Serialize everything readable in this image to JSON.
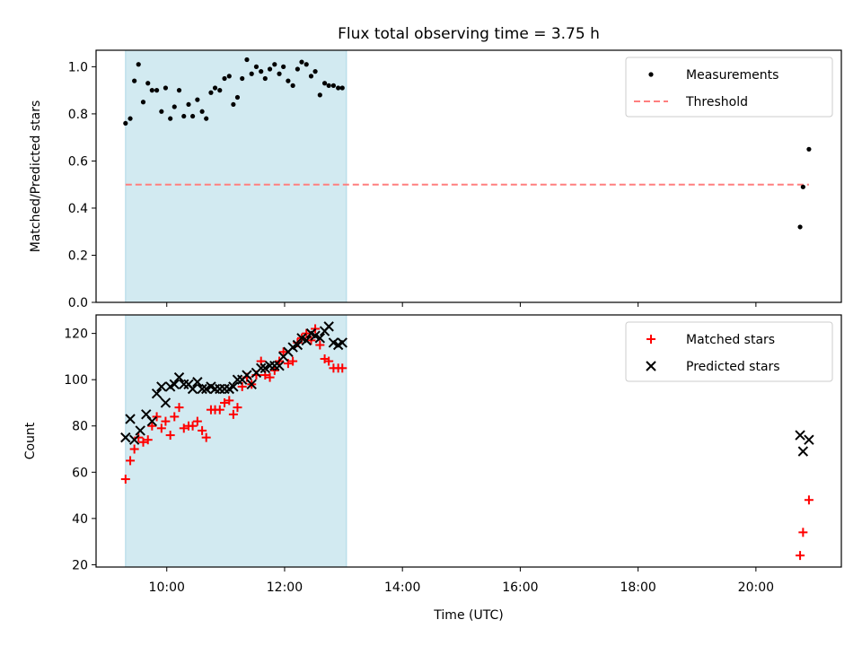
{
  "title": "Flux total observing time = 3.75 h",
  "xlabel": "Time (UTC)",
  "colors": {
    "measurement": "#000000",
    "threshold": "#ff7f7f",
    "matched": "#ff0000",
    "predicted": "#000000",
    "band": "#add8e6"
  },
  "chart_data": [
    {
      "type": "scatter",
      "panel": "top",
      "title": "Flux total observing time = 3.75 h",
      "ylabel": "Matched/Predicted stars",
      "xlim": [
        8.8,
        21.45
      ],
      "ylim": [
        0.0,
        1.07
      ],
      "yticks": [
        0.0,
        0.2,
        0.4,
        0.6,
        0.8,
        1.0
      ],
      "ytick_labels": [
        "0.0",
        "0.2",
        "0.4",
        "0.6",
        "0.8",
        "1.0"
      ],
      "shaded_interval": [
        9.3,
        13.05
      ],
      "legend": {
        "position": "top-right",
        "entries": [
          "Measurements",
          "Threshold"
        ]
      },
      "threshold": {
        "name": "Threshold",
        "y": 0.5,
        "x_range": [
          9.3,
          20.9
        ]
      },
      "series": [
        {
          "name": "Measurements",
          "x": [
            9.3,
            9.38,
            9.45,
            9.52,
            9.6,
            9.68,
            9.75,
            9.83,
            9.91,
            9.98,
            10.06,
            10.13,
            10.21,
            10.29,
            10.37,
            10.44,
            10.52,
            10.6,
            10.67,
            10.75,
            10.82,
            10.9,
            10.98,
            11.06,
            11.13,
            11.2,
            11.28,
            11.36,
            11.44,
            11.52,
            11.6,
            11.67,
            11.75,
            11.83,
            11.91,
            11.98,
            12.06,
            12.14,
            12.22,
            12.29,
            12.37,
            12.45,
            12.52,
            12.6,
            12.68,
            12.75,
            12.83,
            12.91,
            12.98,
            20.75,
            20.8,
            20.9
          ],
          "y": [
            0.76,
            0.78,
            0.94,
            1.01,
            0.85,
            0.93,
            0.9,
            0.9,
            0.81,
            0.91,
            0.78,
            0.83,
            0.9,
            0.79,
            0.84,
            0.79,
            0.86,
            0.81,
            0.78,
            0.89,
            0.91,
            0.9,
            0.95,
            0.96,
            0.84,
            0.87,
            0.95,
            1.03,
            0.97,
            1.0,
            0.98,
            0.95,
            0.99,
            1.01,
            0.97,
            1.0,
            0.94,
            0.92,
            0.99,
            1.02,
            1.01,
            0.96,
            0.98,
            0.88,
            0.93,
            0.92,
            0.92,
            0.91,
            0.91,
            0.32,
            0.49,
            0.65
          ]
        }
      ]
    },
    {
      "type": "scatter",
      "panel": "bottom",
      "xlabel": "Time (UTC)",
      "ylabel": "Count",
      "xlim": [
        8.8,
        21.45
      ],
      "ylim": [
        19,
        128
      ],
      "xticks": [
        10,
        12,
        14,
        16,
        18,
        20
      ],
      "xtick_labels": [
        "10:00",
        "12:00",
        "14:00",
        "16:00",
        "18:00",
        "20:00"
      ],
      "yticks": [
        20,
        40,
        60,
        80,
        100,
        120
      ],
      "ytick_labels": [
        "20",
        "40",
        "60",
        "80",
        "100",
        "120"
      ],
      "shaded_interval": [
        9.3,
        13.05
      ],
      "legend": {
        "position": "top-right",
        "entries": [
          "Matched stars",
          "Predicted stars"
        ]
      },
      "series": [
        {
          "name": "Matched stars",
          "x": [
            9.3,
            9.38,
            9.45,
            9.52,
            9.6,
            9.68,
            9.75,
            9.83,
            9.91,
            9.98,
            10.06,
            10.13,
            10.21,
            10.29,
            10.37,
            10.44,
            10.52,
            10.6,
            10.67,
            10.75,
            10.82,
            10.9,
            10.98,
            11.06,
            11.13,
            11.2,
            11.28,
            11.36,
            11.44,
            11.52,
            11.6,
            11.67,
            11.75,
            11.83,
            11.91,
            11.98,
            12.06,
            12.14,
            12.22,
            12.29,
            12.37,
            12.45,
            12.52,
            12.6,
            12.68,
            12.75,
            12.83,
            12.91,
            12.98,
            20.75,
            20.8,
            20.9
          ],
          "y": [
            57,
            65,
            70,
            75,
            73,
            74,
            80,
            84,
            79,
            82,
            76,
            84,
            88,
            79,
            80,
            80,
            82,
            78,
            75,
            87,
            87,
            87,
            90,
            91,
            85,
            88,
            97,
            101,
            98,
            102,
            108,
            102,
            101,
            104,
            108,
            112,
            107,
            108,
            116,
            118,
            120,
            117,
            122,
            115,
            109,
            108,
            105,
            105,
            105,
            24,
            34,
            48
          ]
        },
        {
          "name": "Predicted stars",
          "x": [
            9.3,
            9.38,
            9.45,
            9.55,
            9.65,
            9.75,
            9.83,
            9.91,
            9.98,
            10.06,
            10.13,
            10.21,
            10.29,
            10.37,
            10.44,
            10.52,
            10.6,
            10.67,
            10.75,
            10.82,
            10.9,
            10.98,
            11.06,
            11.13,
            11.2,
            11.28,
            11.36,
            11.44,
            11.52,
            11.6,
            11.67,
            11.75,
            11.83,
            11.91,
            11.98,
            12.06,
            12.14,
            12.22,
            12.29,
            12.37,
            12.45,
            12.52,
            12.6,
            12.68,
            12.75,
            12.83,
            12.91,
            12.98,
            20.75,
            20.8,
            20.9
          ],
          "y": [
            75,
            83,
            74,
            78,
            85,
            82,
            94,
            97,
            90,
            97,
            98,
            101,
            98,
            98,
            96,
            99,
            96,
            96,
            97,
            96,
            96,
            96,
            96,
            97,
            100,
            100,
            102,
            98,
            103,
            105,
            105,
            106,
            106,
            106,
            110,
            112,
            114,
            115,
            118,
            117,
            120,
            119,
            118,
            121,
            123,
            116,
            115,
            116,
            76,
            69,
            74
          ]
        }
      ]
    }
  ]
}
